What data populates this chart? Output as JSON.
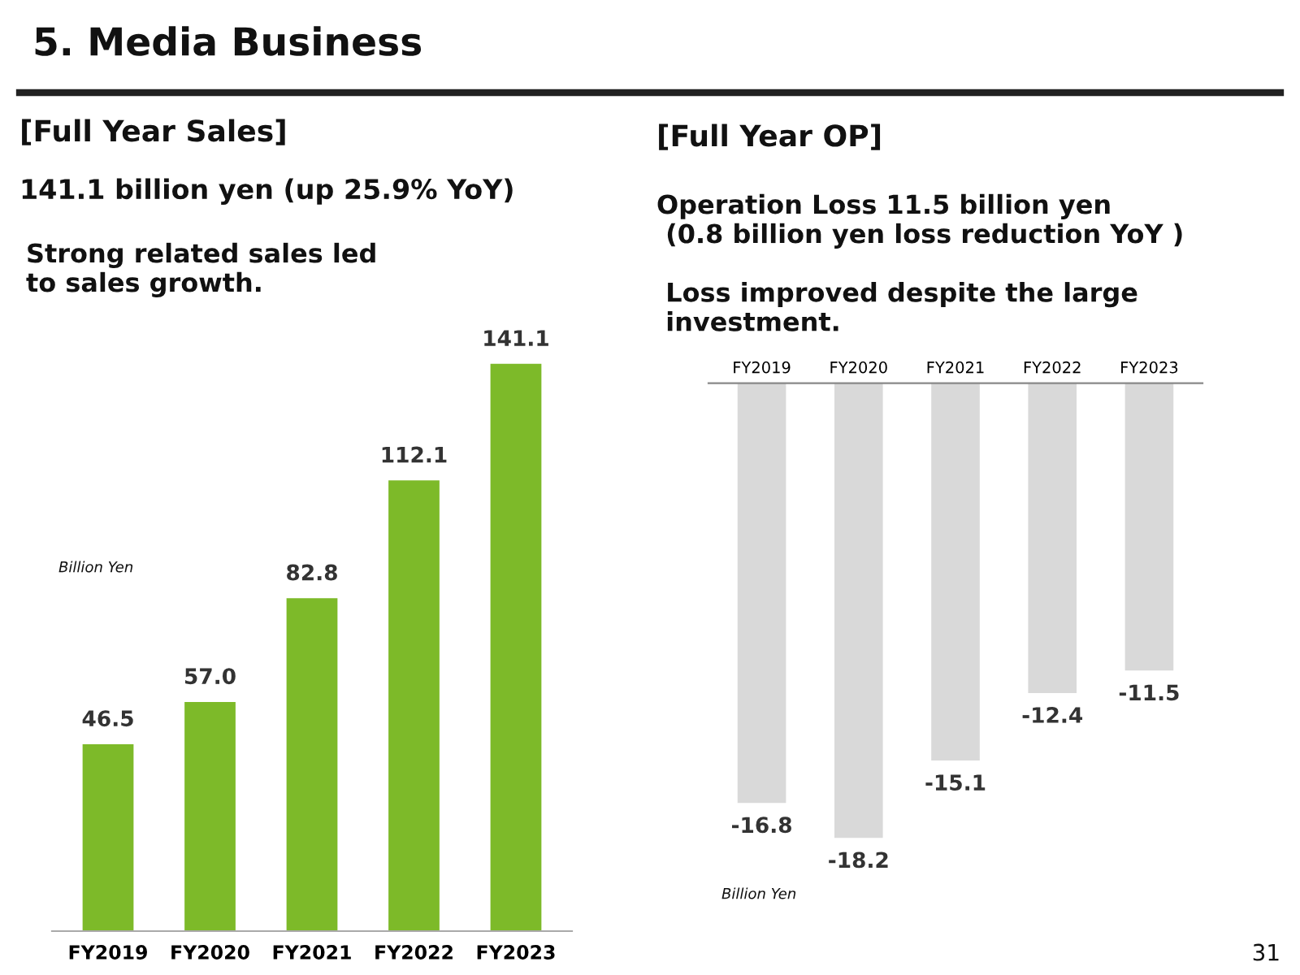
{
  "chart_data": [
    {
      "type": "bar",
      "title": "[Full Year Sales]",
      "subtitle": "141.1 billion yen (up 25.9% YoY)",
      "categories": [
        "FY2019",
        "FY2020",
        "FY2021",
        "FY2022",
        "FY2023"
      ],
      "values": [
        46.5,
        57.0,
        82.8,
        112.1,
        141.1
      ],
      "value_labels": [
        "46.5",
        "57.0",
        "82.8",
        "112.1",
        "141.1"
      ],
      "color": "#7dba29",
      "grid": false,
      "legend": false,
      "annotations": [
        "5. Media Business",
        "Strong related sales led\nto sales growth.",
        "31",
        "Billion Yen"
      ]
    },
    {
      "type": "bar",
      "title": "[Full Year OP]",
      "subtitle": "Operation Loss 11.5 billion yen\n (0.8 billion yen loss reduction YoY )",
      "categories": [
        "FY2019",
        "FY2020",
        "FY2021",
        "FY2022",
        "FY2023"
      ],
      "values": [
        -16.8,
        -18.2,
        -15.1,
        -12.4,
        -11.5
      ],
      "value_labels": [
        "-16.8",
        "-18.2",
        "-15.1",
        "-12.4",
        "-11.5"
      ],
      "color": "#d9d9d9",
      "grid": false,
      "legend": false,
      "annotations": [
        "Loss improved despite the large\ninvestment.",
        "Billion Yen"
      ]
    }
  ]
}
